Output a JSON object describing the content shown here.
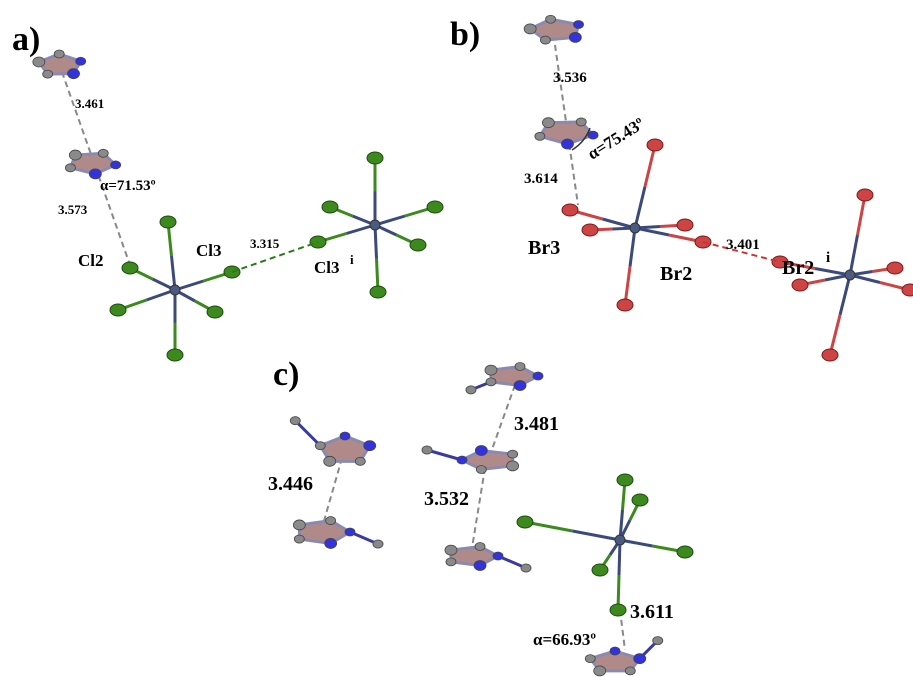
{
  "panels": {
    "a": {
      "label": "a)",
      "distances": [
        "3.461",
        "3.573",
        "3.315"
      ],
      "angle": "α=71.53º",
      "atom_labels": [
        {
          "text": "Cl2"
        },
        {
          "text": "Cl3"
        },
        {
          "text": "Cl3",
          "sup": "i"
        }
      ]
    },
    "b": {
      "label": "b)",
      "distances": [
        "3.536",
        "3.614",
        "3.401"
      ],
      "angle": "α=75.43º",
      "atom_labels": [
        {
          "text": "Br3"
        },
        {
          "text": "Br2"
        },
        {
          "text": "Br2",
          "sup": "i"
        }
      ]
    },
    "c": {
      "label": "c)",
      "distances": [
        "3.446",
        "3.481",
        "3.532",
        "3.611"
      ],
      "angle": "α=66.93º"
    }
  }
}
